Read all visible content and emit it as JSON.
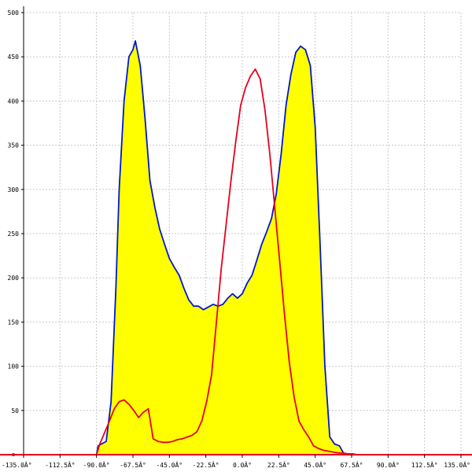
{
  "chart_data": {
    "type": "area",
    "title": "",
    "xlabel": "",
    "ylabel": "",
    "xlim": [
      -135,
      135
    ],
    "ylim": [
      0,
      500
    ],
    "grid": true,
    "x_ticks": [
      -135,
      -112.5,
      -90,
      -67.5,
      -45,
      -22.5,
      0,
      22.5,
      45,
      67.5,
      90,
      112.5,
      135
    ],
    "x_tick_labels": [
      "-135.0Â°",
      "-112.5Â°",
      "-90.0Â°",
      "-67.5Â°",
      "-45.0Â°",
      "-22.5Â°",
      "0.0Â°",
      "22.5Â°",
      "45.0Â°",
      "67.5Â°",
      "90.0Â°",
      "112.5Â°",
      "135.0Â°"
    ],
    "y_ticks": [
      50,
      100,
      150,
      200,
      250,
      300,
      350,
      400,
      450,
      500
    ],
    "y_tick_labels": [
      "50",
      "100",
      "150",
      "200",
      "250",
      "300",
      "350",
      "400",
      "450",
      "500"
    ],
    "colors": {
      "fill": "#ffff00",
      "blue_line": "#0018c8",
      "red_line": "#e8001c",
      "axis": "#000000",
      "baseline": "#e8001c",
      "grid": "#c8c8c8"
    },
    "series": [
      {
        "color": "blue",
        "filled": true,
        "x": [
          -135,
          -90,
          -89,
          -84,
          -81,
          -78,
          -76,
          -73,
          -70,
          -67.5,
          -66,
          -63,
          -60,
          -57,
          -54,
          -51,
          -48,
          -45,
          -42,
          -39,
          -36,
          -33,
          -30,
          -27,
          -24,
          -21,
          -18,
          -15,
          -12,
          -9,
          -6,
          -3,
          0,
          3,
          6,
          9,
          12,
          15,
          18,
          21,
          24,
          27,
          30,
          33,
          36,
          39,
          42,
          45,
          48,
          51,
          54,
          57,
          60,
          63,
          66,
          69,
          72,
          75,
          78,
          81,
          84,
          87,
          90,
          135
        ],
        "y": [
          0,
          0,
          10,
          15,
          60,
          190,
          300,
          400,
          450,
          458,
          468,
          440,
          380,
          310,
          280,
          255,
          238,
          222,
          212,
          203,
          188,
          175,
          168,
          168,
          164,
          167,
          170,
          168,
          170,
          177,
          182,
          177,
          182,
          194,
          203,
          220,
          238,
          252,
          267,
          295,
          340,
          395,
          430,
          455,
          462,
          458,
          440,
          370,
          240,
          100,
          20,
          12,
          10,
          0,
          0,
          0,
          0,
          0,
          0,
          0,
          0,
          0,
          0,
          0
        ]
      },
      {
        "color": "red",
        "filled": false,
        "x": [
          -135,
          -90,
          -88,
          -85,
          -82,
          -79,
          -76,
          -73,
          -70,
          -67,
          -64,
          -61,
          -58,
          -55,
          -52,
          -49,
          -46,
          -43,
          -40,
          -37,
          -34,
          -31,
          -28,
          -25,
          -22,
          -19,
          -16,
          -13,
          -10,
          -7,
          -4,
          -1,
          2,
          5,
          8,
          11,
          14,
          17,
          20,
          23,
          26,
          29,
          32,
          35,
          38,
          41,
          44,
          47,
          50,
          53,
          56,
          59,
          62,
          65,
          68,
          71,
          74,
          77,
          80,
          83,
          86,
          89,
          92,
          135
        ],
        "y": [
          0,
          0,
          12,
          25,
          38,
          52,
          60,
          62,
          57,
          50,
          42,
          48,
          52,
          18,
          15,
          14,
          14,
          15,
          17,
          18,
          20,
          22,
          26,
          38,
          60,
          90,
          150,
          210,
          260,
          310,
          355,
          395,
          415,
          428,
          436,
          425,
          390,
          340,
          280,
          220,
          160,
          105,
          65,
          38,
          28,
          20,
          10,
          7,
          5,
          4,
          3,
          2,
          2,
          1,
          1,
          0,
          0,
          0,
          0,
          0,
          0,
          0,
          0,
          0
        ]
      }
    ]
  }
}
